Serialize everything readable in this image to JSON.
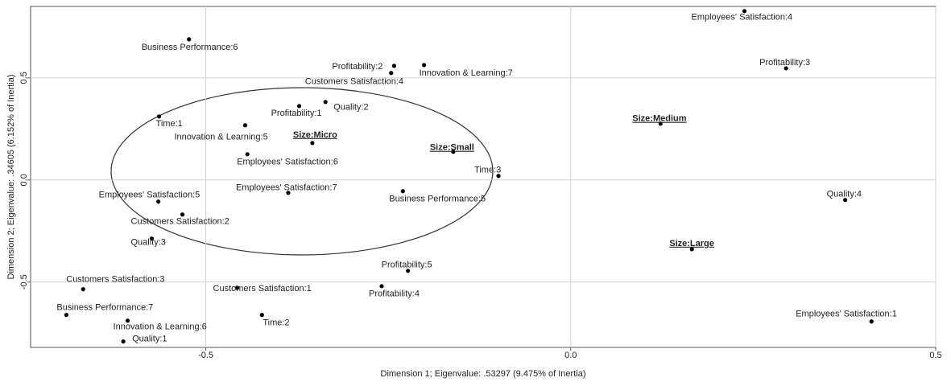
{
  "chart_data": {
    "type": "scatter",
    "x_label": "Dimension 1; Eigenvalue: .53297 (9.475% of Inertia)",
    "y_label": "Dimension 2; Eigenvalue: .34605 (6.152% of Inertia)",
    "labels": [
      "Employees' Satisfaction:4",
      "Profitability:3",
      "Business Performance:6",
      "Profitability:2",
      "Innovation & Learning:7",
      "Customers Satisfaction:4",
      "Quality:2",
      "Profitability:1",
      "Time:1",
      "Innovation & Learning:5",
      "Size:Micro",
      "Employees' Satisfaction:6",
      "Size:Small",
      "Time:3",
      "Size:Medium",
      "Employees' Satisfaction:7",
      "Business Performance:5",
      "Employees' Satisfaction:5",
      "Quality:4",
      "Customers Satisfaction:2",
      "Size:Large",
      "Quality:3",
      "Profitability:5",
      "Customers Satisfaction:3",
      "Customers Satisfaction:1",
      "Profitability:4",
      "Business Performance:7",
      "Time:2",
      "Innovation & Learning:6",
      "Employees' Satisfaction:1",
      "Quality:1"
    ],
    "x": [
      0.238,
      0.295,
      -0.523,
      -0.242,
      -0.201,
      -0.246,
      -0.336,
      -0.372,
      -0.564,
      -0.446,
      -0.354,
      -0.443,
      -0.161,
      -0.099,
      0.123,
      -0.387,
      -0.23,
      -0.565,
      0.376,
      -0.532,
      0.166,
      -0.574,
      -0.223,
      -0.668,
      -0.457,
      -0.259,
      -0.691,
      -0.423,
      -0.607,
      0.412,
      -0.613
    ],
    "values": [
      0.827,
      0.547,
      0.689,
      0.559,
      0.563,
      0.524,
      0.382,
      0.362,
      0.311,
      0.268,
      0.181,
      0.126,
      0.138,
      0.02,
      0.276,
      -0.063,
      -0.055,
      -0.106,
      -0.098,
      -0.169,
      -0.339,
      -0.287,
      -0.445,
      -0.535,
      -0.528,
      -0.52,
      -0.661,
      -0.661,
      -0.689,
      -0.693,
      -0.791
    ],
    "color": "#000000",
    "xlim": [
      -0.74,
      0.5
    ],
    "xticks": [
      -0.5,
      {
        "value": 0,
        "label": "0.0"
      },
      0.5
    ],
    "ylim": [
      -0.82,
      0.85
    ],
    "yticks": [
      -0.5,
      {
        "value": 0,
        "label": "0.0"
      },
      0.5
    ],
    "grid": true
  }
}
